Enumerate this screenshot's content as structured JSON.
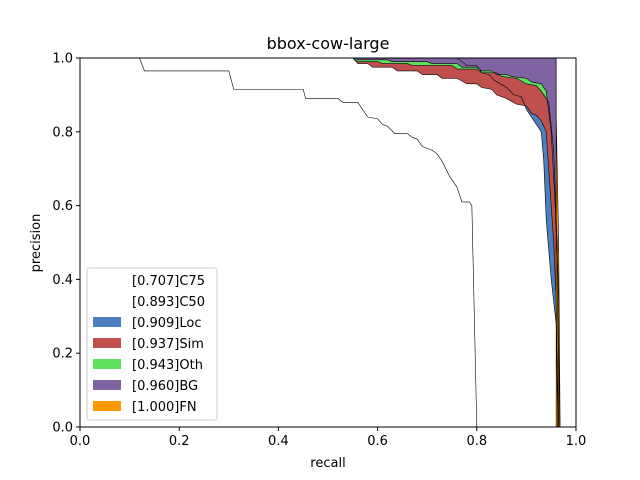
{
  "chart_data": {
    "type": "area",
    "title": "bbox-cow-large",
    "xlabel": "recall",
    "ylabel": "precision",
    "xlim": [
      0,
      1
    ],
    "ylim": [
      0,
      1
    ],
    "xticks": [
      "0.0",
      "0.2",
      "0.4",
      "0.6",
      "0.8",
      "1.0"
    ],
    "yticks": [
      "0.0",
      "0.2",
      "0.4",
      "0.6",
      "0.8",
      "1.0"
    ],
    "legend_position": "lower-left",
    "series": [
      {
        "name": "[0.707]C75",
        "color": "#ffffff",
        "points": [
          [
            0,
            1
          ],
          [
            0.12,
            1
          ],
          [
            0.13,
            0.965
          ],
          [
            0.3,
            0.965
          ],
          [
            0.31,
            0.915
          ],
          [
            0.45,
            0.915
          ],
          [
            0.455,
            0.89
          ],
          [
            0.52,
            0.89
          ],
          [
            0.53,
            0.88
          ],
          [
            0.56,
            0.88
          ],
          [
            0.57,
            0.86
          ],
          [
            0.58,
            0.84
          ],
          [
            0.6,
            0.835
          ],
          [
            0.61,
            0.82
          ],
          [
            0.62,
            0.815
          ],
          [
            0.635,
            0.795
          ],
          [
            0.66,
            0.795
          ],
          [
            0.67,
            0.785
          ],
          [
            0.68,
            0.78
          ],
          [
            0.69,
            0.76
          ],
          [
            0.7,
            0.755
          ],
          [
            0.71,
            0.75
          ],
          [
            0.72,
            0.74
          ],
          [
            0.73,
            0.72
          ],
          [
            0.745,
            0.68
          ],
          [
            0.76,
            0.65
          ],
          [
            0.77,
            0.61
          ],
          [
            0.785,
            0.61
          ],
          [
            0.79,
            0.6
          ],
          [
            0.8,
            0
          ]
        ]
      },
      {
        "name": "[0.893]C50",
        "color": "#ffffff",
        "points": [
          [
            0,
            1
          ],
          [
            0.76,
            1
          ],
          [
            0.78,
            0.98
          ],
          [
            0.8,
            0.98
          ],
          [
            0.81,
            0.96
          ],
          [
            0.825,
            0.955
          ],
          [
            0.835,
            0.94
          ],
          [
            0.86,
            0.92
          ],
          [
            0.875,
            0.9
          ],
          [
            0.89,
            0.895
          ],
          [
            0.9,
            0.86
          ],
          [
            0.915,
            0.83
          ],
          [
            0.93,
            0.8
          ],
          [
            0.935,
            0.72
          ],
          [
            0.94,
            0.56
          ],
          [
            0.95,
            0.4
          ],
          [
            0.96,
            0.28
          ],
          [
            0.965,
            0
          ]
        ]
      },
      {
        "name": "[0.909]Loc",
        "color": "#4c7fbf",
        "points": [
          [
            0,
            1
          ],
          [
            0.55,
            1
          ],
          [
            0.56,
            0.985
          ],
          [
            0.58,
            0.985
          ],
          [
            0.59,
            0.975
          ],
          [
            0.63,
            0.975
          ],
          [
            0.64,
            0.965
          ],
          [
            0.68,
            0.965
          ],
          [
            0.69,
            0.955
          ],
          [
            0.72,
            0.955
          ],
          [
            0.73,
            0.945
          ],
          [
            0.76,
            0.945
          ],
          [
            0.78,
            0.93
          ],
          [
            0.8,
            0.93
          ],
          [
            0.81,
            0.92
          ],
          [
            0.83,
            0.915
          ],
          [
            0.84,
            0.9
          ],
          [
            0.86,
            0.89
          ],
          [
            0.88,
            0.875
          ],
          [
            0.9,
            0.87
          ],
          [
            0.91,
            0.85
          ],
          [
            0.92,
            0.845
          ],
          [
            0.93,
            0.83
          ],
          [
            0.94,
            0.8
          ],
          [
            0.945,
            0.7
          ],
          [
            0.955,
            0.5
          ],
          [
            0.96,
            0.35
          ],
          [
            0.963,
            0
          ]
        ]
      },
      {
        "name": "[0.937]Sim",
        "color": "#c0504d",
        "points": [
          [
            0,
            1
          ],
          [
            0.55,
            1
          ],
          [
            0.56,
            0.99
          ],
          [
            0.6,
            0.99
          ],
          [
            0.61,
            0.985
          ],
          [
            0.66,
            0.985
          ],
          [
            0.67,
            0.98
          ],
          [
            0.75,
            0.98
          ],
          [
            0.76,
            0.97
          ],
          [
            0.8,
            0.97
          ],
          [
            0.81,
            0.96
          ],
          [
            0.84,
            0.96
          ],
          [
            0.85,
            0.95
          ],
          [
            0.88,
            0.945
          ],
          [
            0.9,
            0.93
          ],
          [
            0.92,
            0.925
          ],
          [
            0.93,
            0.91
          ],
          [
            0.945,
            0.88
          ],
          [
            0.955,
            0.75
          ],
          [
            0.962,
            0.5
          ],
          [
            0.965,
            0
          ]
        ]
      },
      {
        "name": "[0.943]Oth",
        "color": "#5fe05f",
        "points": [
          [
            0,
            1
          ],
          [
            0.555,
            1
          ],
          [
            0.56,
            0.995
          ],
          [
            0.62,
            0.995
          ],
          [
            0.63,
            0.99
          ],
          [
            0.7,
            0.99
          ],
          [
            0.71,
            0.985
          ],
          [
            0.76,
            0.985
          ],
          [
            0.77,
            0.975
          ],
          [
            0.8,
            0.975
          ],
          [
            0.81,
            0.965
          ],
          [
            0.83,
            0.965
          ],
          [
            0.84,
            0.955
          ],
          [
            0.86,
            0.955
          ],
          [
            0.87,
            0.95
          ],
          [
            0.9,
            0.945
          ],
          [
            0.91,
            0.935
          ],
          [
            0.93,
            0.93
          ],
          [
            0.94,
            0.91
          ],
          [
            0.95,
            0.8
          ],
          [
            0.958,
            0.6
          ],
          [
            0.964,
            0.4
          ],
          [
            0.967,
            0
          ]
        ]
      },
      {
        "name": "[0.960]BG",
        "color": "#8064a2",
        "points": [
          [
            0,
            1
          ],
          [
            0.96,
            1
          ],
          [
            0.96,
            0.85
          ],
          [
            0.965,
            0.5
          ],
          [
            0.968,
            0
          ]
        ]
      },
      {
        "name": "[1.000]FN",
        "color": "#ff9900",
        "points": [
          [
            0,
            1
          ],
          [
            0.96,
            1
          ],
          [
            0.96,
            0
          ]
        ]
      }
    ]
  }
}
